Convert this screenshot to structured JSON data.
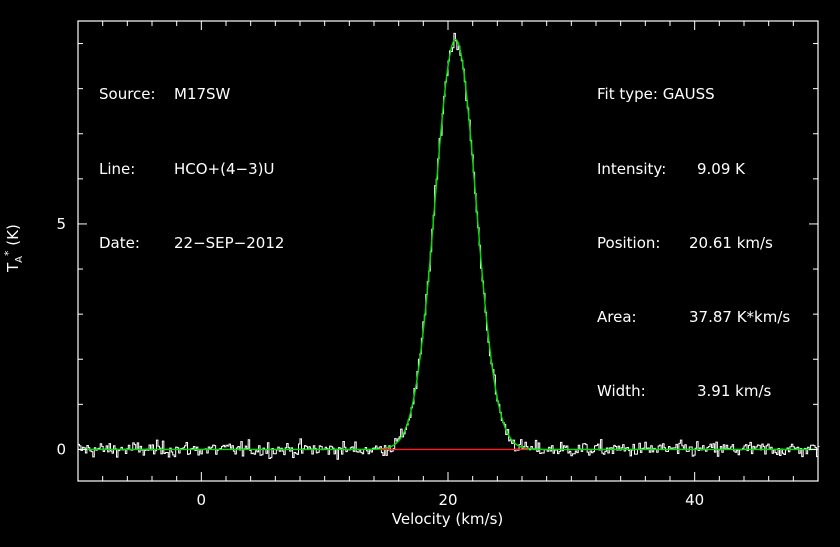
{
  "header": {
    "source_key": "Source:",
    "source_val": "M17SW",
    "line_key": "Line:",
    "line_val": "HCO+(4−3)U",
    "date_key": "Date:",
    "date_val": "22−SEP−2012"
  },
  "fit": {
    "type_key": "Fit type:",
    "type_val": "GAUSS",
    "intensity_key": "Intensity:",
    "intensity_val": "9.09 K",
    "position_key": "Position:",
    "position_val": "20.61 km/s",
    "area_key": "Area:",
    "area_val": "37.87 K*km/s",
    "width_key": "Width:",
    "width_val": "3.91 km/s"
  },
  "chart_data": {
    "type": "line",
    "xlabel": "Velocity (km/s)",
    "ylabel": "T_A* (K)",
    "xlim": [
      -10,
      50
    ],
    "ylim": [
      -0.7,
      9.5
    ],
    "xticks": [
      0,
      20,
      40
    ],
    "xtick_labels": [
      "0",
      "20",
      "40"
    ],
    "yticks": [
      0,
      5
    ],
    "ytick_labels": [
      "0",
      "5"
    ],
    "series": [
      {
        "role": "observed spectrum (histogram)",
        "color": "#ffffff",
        "noise_rms": 0.12,
        "peak": 9.09,
        "center": 20.61,
        "fwhm": 3.91
      },
      {
        "role": "gaussian fit",
        "color": "#00dd00",
        "peak": 9.09,
        "center": 20.61,
        "fwhm": 3.91
      },
      {
        "role": "baseline window",
        "color": "#ff2020",
        "x": [
          14.5,
          26.5
        ],
        "y": [
          0,
          0
        ]
      }
    ]
  }
}
